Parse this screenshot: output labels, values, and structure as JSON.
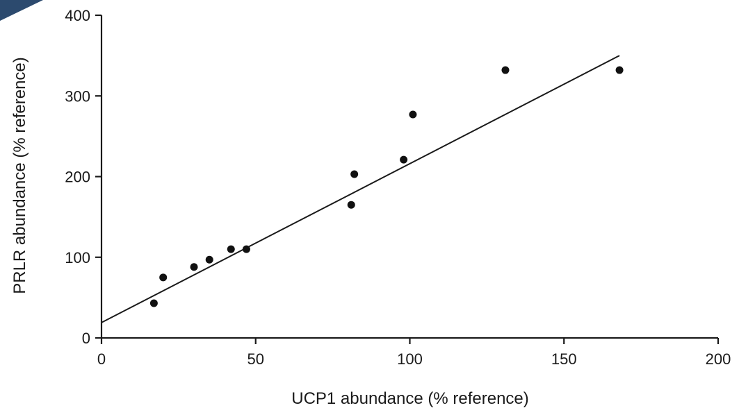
{
  "chart_data": {
    "type": "scatter",
    "title": "",
    "xlabel": "UCP1 abundance (% reference)",
    "ylabel": "PRLR abundance (% reference)",
    "xlim": [
      0,
      200
    ],
    "ylim": [
      0,
      400
    ],
    "xticks": [
      0,
      50,
      100,
      150,
      200
    ],
    "yticks": [
      0,
      100,
      200,
      300,
      400
    ],
    "xtick_labels": [
      "0",
      "50",
      "100",
      "150",
      "200"
    ],
    "ytick_labels": [
      "0",
      "100",
      "200",
      "300",
      "400"
    ],
    "grid": false,
    "series": [
      {
        "points": [
          {
            "x": 17,
            "y": 43
          },
          {
            "x": 20,
            "y": 75
          },
          {
            "x": 30,
            "y": 88
          },
          {
            "x": 35,
            "y": 97
          },
          {
            "x": 42,
            "y": 110
          },
          {
            "x": 47,
            "y": 110
          },
          {
            "x": 81,
            "y": 165
          },
          {
            "x": 82,
            "y": 203
          },
          {
            "x": 98,
            "y": 221
          },
          {
            "x": 101,
            "y": 277
          },
          {
            "x": 131,
            "y": 332
          },
          {
            "x": 168,
            "y": 332
          }
        ]
      }
    ],
    "fit_line": {
      "x": [
        0,
        168
      ],
      "y": [
        19,
        350
      ]
    },
    "colors": {
      "points": "#111111",
      "line": "#1a1a1a",
      "corner": "#2c4a6e"
    }
  }
}
